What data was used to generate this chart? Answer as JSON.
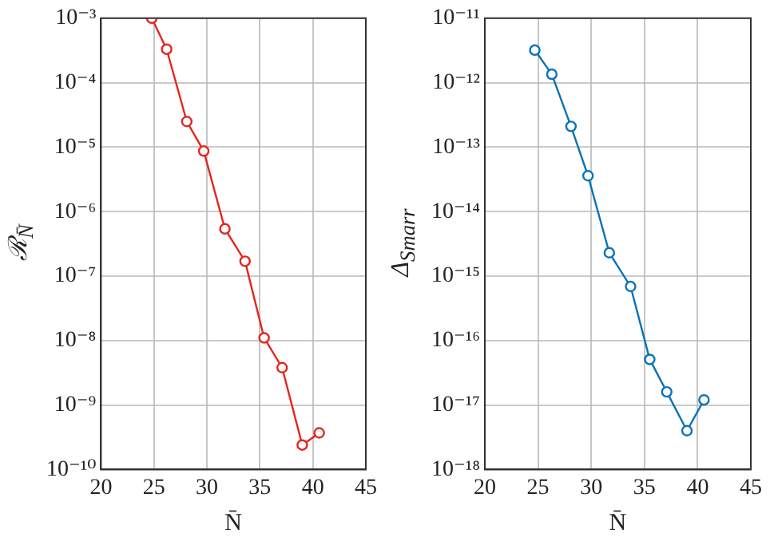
{
  "chart_data": [
    {
      "type": "line",
      "xlabel": "N̄",
      "ylabel": "ℛ$_{N̄}$",
      "log": "y",
      "grid": true,
      "marker": "circle",
      "xlim": [
        20,
        45
      ],
      "xticks": [
        20,
        25,
        30,
        35,
        40,
        45
      ],
      "ylim": [
        1e-10,
        0.001
      ],
      "yticks": [
        {
          "value": 1e-10,
          "label": "10⁻¹⁰"
        },
        {
          "value": 1e-09,
          "label": "10⁻⁹"
        },
        {
          "value": 1e-08,
          "label": "10⁻⁸"
        },
        {
          "value": 1e-07,
          "label": "10⁻⁷"
        },
        {
          "value": 1e-06,
          "label": "10⁻⁶"
        },
        {
          "value": 1e-05,
          "label": "10⁻⁵"
        },
        {
          "value": 0.0001,
          "label": "10⁻⁴"
        },
        {
          "value": 0.001,
          "label": "10⁻³"
        }
      ],
      "x": [
        24.8,
        26.2,
        28.1,
        29.7,
        31.7,
        33.6,
        35.4,
        37.1,
        39.0,
        40.6
      ],
      "series": [
        {
          "color": "#e3261d",
          "values": [
            0.001,
            0.00033,
            2.5e-05,
            8.7e-06,
            5.4e-07,
            1.7e-07,
            1.1e-08,
            3.8e-09,
            2.4e-10,
            3.7e-10
          ]
        }
      ]
    },
    {
      "type": "line",
      "xlabel": "N̄",
      "ylabel": "Δ$_{Smarr}$",
      "log": "y",
      "grid": true,
      "marker": "circle",
      "xlim": [
        20,
        45
      ],
      "xticks": [
        20,
        25,
        30,
        35,
        40,
        45
      ],
      "ylim": [
        1e-18,
        1e-11
      ],
      "yticks": [
        {
          "value": 1e-18,
          "label": "10⁻¹⁸"
        },
        {
          "value": 1e-17,
          "label": "10⁻¹⁷"
        },
        {
          "value": 1e-16,
          "label": "10⁻¹⁶"
        },
        {
          "value": 1e-15,
          "label": "10⁻¹⁵"
        },
        {
          "value": 1e-14,
          "label": "10⁻¹⁴"
        },
        {
          "value": 1e-13,
          "label": "10⁻¹³"
        },
        {
          "value": 1e-12,
          "label": "10⁻¹²"
        },
        {
          "value": 1e-11,
          "label": "10⁻¹¹"
        }
      ],
      "x": [
        24.7,
        26.3,
        28.1,
        29.7,
        31.7,
        33.7,
        35.5,
        37.1,
        39.0,
        40.6
      ],
      "series": [
        {
          "color": "#0a72b8",
          "values": [
            3.2e-12,
            1.35e-12,
            2.1e-13,
            3.6e-14,
            2.3e-15,
            6.9e-16,
            5.1e-17,
            1.6e-17,
            4e-18,
            1.2e-17
          ]
        }
      ]
    }
  ]
}
